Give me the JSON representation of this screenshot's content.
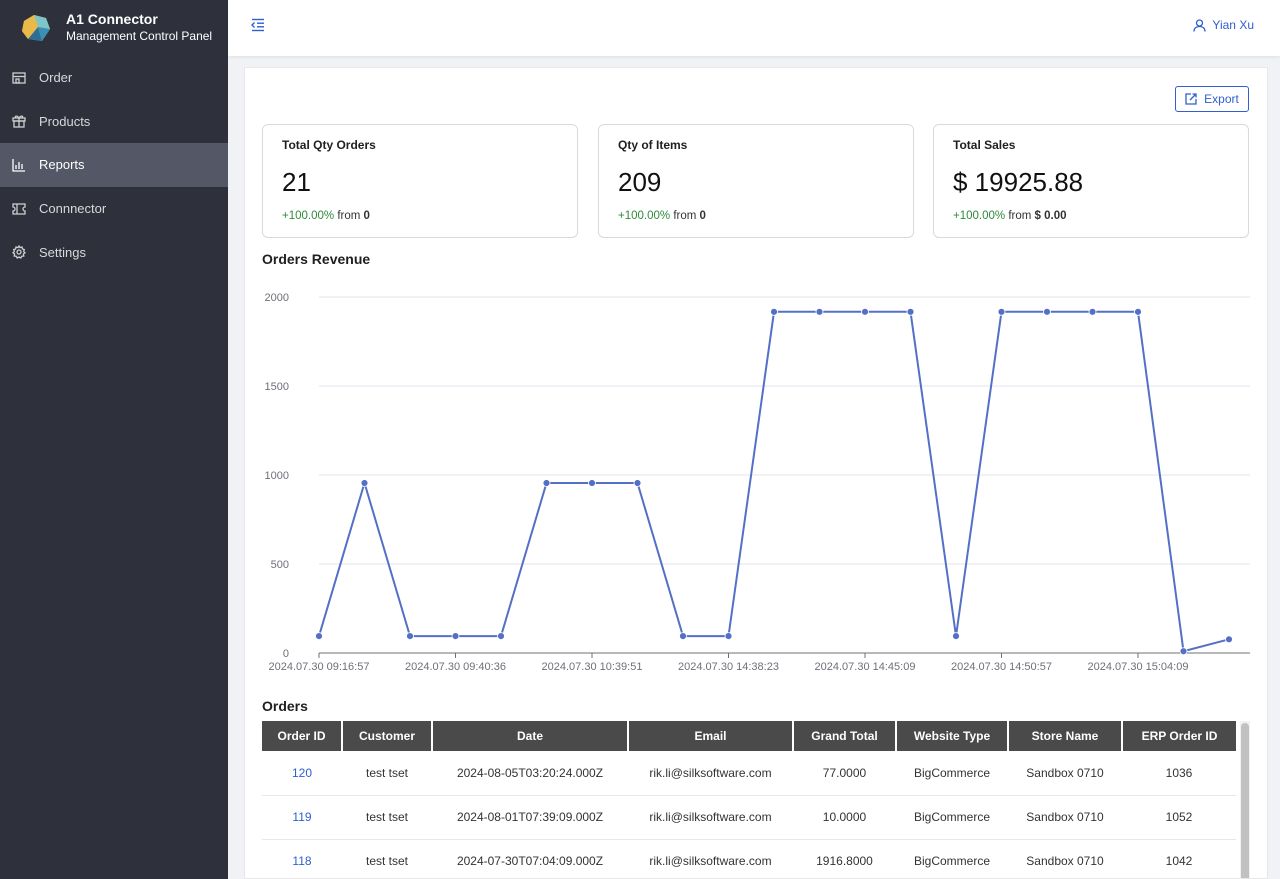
{
  "brand": {
    "title": "A1 Connector",
    "subtitle": "Management Control Panel"
  },
  "sidebar": {
    "items": [
      {
        "label": "Order",
        "icon": "store-icon"
      },
      {
        "label": "Products",
        "icon": "gift-icon"
      },
      {
        "label": "Reports",
        "icon": "bar-chart-icon",
        "active": true
      },
      {
        "label": "Connnector",
        "icon": "ticket-icon"
      },
      {
        "label": "Settings",
        "icon": "gear-icon"
      }
    ]
  },
  "header": {
    "user_name": "Yian Xu"
  },
  "toolbar": {
    "export_label": "Export"
  },
  "stats": [
    {
      "label": "Total Qty Orders",
      "value": "21",
      "change": "+100.00%",
      "from_text": "from",
      "from_value": "0"
    },
    {
      "label": "Qty of Items",
      "value": "209",
      "change": "+100.00%",
      "from_text": "from",
      "from_value": "0"
    },
    {
      "label": "Total Sales",
      "value": "$ 19925.88",
      "change": "+100.00%",
      "from_text": "from",
      "from_value": "$ 0.00"
    }
  ],
  "chart_title": "Orders Revenue",
  "chart_data": {
    "type": "line",
    "title": "Orders Revenue",
    "xlabel": "",
    "ylabel": "",
    "ylim": [
      0,
      2000
    ],
    "yticks": [
      0,
      500,
      1000,
      1500,
      2000
    ],
    "grid": true,
    "color": "#5470c6",
    "x_tick_labels": [
      "2024.07.30 09:16:57",
      "2024.07.30 09:40:36",
      "2024.07.30 10:39:51",
      "2024.07.30 14:38:23",
      "2024.07.30 14:45:09",
      "2024.07.30 14:50:57",
      "2024.07.30 15:04:09"
    ],
    "x_tick_every": 3,
    "values": [
      95,
      955,
      95,
      95,
      95,
      955,
      955,
      955,
      95,
      95,
      1916.8,
      1916.8,
      1916.8,
      1916.8,
      95,
      1916.8,
      1916.8,
      1916.8,
      1916.8,
      10,
      77
    ]
  },
  "orders_title": "Orders",
  "orders": {
    "columns": [
      "Order ID",
      "Customer",
      "Date",
      "Email",
      "Grand Total",
      "Website Type",
      "Store Name",
      "ERP Order ID"
    ],
    "rows": [
      [
        "120",
        "test tset",
        "2024-08-05T03:20:24.000Z",
        "rik.li@silksoftware.com",
        "77.0000",
        "BigCommerce",
        "Sandbox 0710",
        "1036"
      ],
      [
        "119",
        "test tset",
        "2024-08-01T07:39:09.000Z",
        "rik.li@silksoftware.com",
        "10.0000",
        "BigCommerce",
        "Sandbox 0710",
        "1052"
      ],
      [
        "118",
        "test tset",
        "2024-07-30T07:04:09.000Z",
        "rik.li@silksoftware.com",
        "1916.8000",
        "BigCommerce",
        "Sandbox 0710",
        "1042"
      ]
    ]
  }
}
